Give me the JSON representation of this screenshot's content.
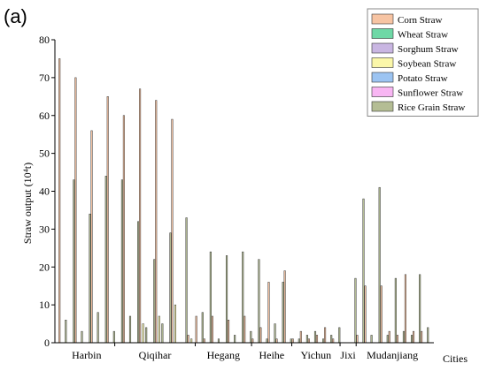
{
  "panel_label": "(a)",
  "colors": {
    "corn": "#f7c4a3",
    "wheat": "#6fd8a6",
    "sorghum": "#c9b6e2",
    "soybean": "#fbf7a9",
    "potato": "#9cc4f2",
    "sunflower": "#f8b6f3",
    "rice": "#b4bd94"
  },
  "chart_data": {
    "type": "bar",
    "title": "",
    "xlabel": "Cities",
    "ylabel": "Straw output (10⁴t)",
    "ylim": [
      0,
      80
    ],
    "yticks": [
      0,
      10,
      20,
      30,
      40,
      50,
      60,
      70,
      80
    ],
    "grid": false,
    "legend_position": "top-right",
    "series": [
      {
        "name": "Corn Straw",
        "color_key": "corn"
      },
      {
        "name": "Wheat Straw",
        "color_key": "wheat"
      },
      {
        "name": "Sorghum Straw",
        "color_key": "sorghum"
      },
      {
        "name": "Soybean Straw",
        "color_key": "soybean"
      },
      {
        "name": "Potato Straw",
        "color_key": "potato"
      },
      {
        "name": "Sunflower Straw",
        "color_key": "sunflower"
      },
      {
        "name": "Rice Grain Straw",
        "color_key": "rice"
      }
    ],
    "cities": [
      {
        "name": "Harbin",
        "counties": [
          {
            "values": [
              75,
              0,
              0,
              0,
              0,
              0,
              6
            ]
          },
          {
            "values": [
              0,
              0,
              0,
              0,
              0,
              0,
              43
            ]
          },
          {
            "values": [
              70,
              0,
              0,
              0,
              0,
              0,
              3
            ]
          },
          {
            "values": [
              0,
              0,
              0,
              0,
              0,
              0,
              34
            ]
          },
          {
            "values": [
              56,
              0,
              0,
              0,
              0,
              0,
              8
            ]
          },
          {
            "values": [
              0,
              0,
              0,
              0,
              0,
              0,
              44
            ]
          },
          {
            "values": [
              65,
              0,
              0,
              0,
              0,
              0,
              3
            ]
          }
        ]
      },
      {
        "name": "Qiqihar",
        "counties": [
          {
            "values": [
              0,
              0,
              0,
              0,
              0,
              0,
              43
            ]
          },
          {
            "values": [
              60,
              0,
              0,
              0,
              0,
              0,
              7
            ]
          },
          {
            "values": [
              0,
              0,
              0,
              0,
              0,
              0,
              32
            ]
          },
          {
            "values": [
              67,
              0,
              0,
              5,
              0,
              0,
              4
            ]
          },
          {
            "values": [
              0,
              0,
              0,
              0,
              0,
              0,
              22
            ]
          },
          {
            "values": [
              64,
              0,
              0,
              7,
              0,
              0,
              5
            ]
          },
          {
            "values": [
              0,
              0,
              0,
              0,
              0,
              0,
              29
            ]
          },
          {
            "values": [
              59,
              0,
              0,
              10,
              0,
              0,
              0
            ]
          },
          {
            "values": [
              0,
              0,
              0,
              0,
              0,
              0,
              33
            ]
          },
          {
            "values": [
              2,
              0,
              0,
              1,
              0,
              0,
              0
            ]
          }
        ]
      },
      {
        "name": "Hegang",
        "counties": [
          {
            "values": [
              7,
              0,
              0,
              0,
              0,
              0,
              8
            ]
          },
          {
            "values": [
              1,
              0,
              0,
              0,
              0,
              0,
              24
            ]
          },
          {
            "values": [
              7,
              0,
              0,
              0,
              0,
              0,
              1
            ]
          },
          {
            "values": [
              0,
              0,
              0,
              0,
              0,
              0,
              23
            ]
          },
          {
            "values": [
              6,
              0,
              0,
              0,
              0,
              0,
              2
            ]
          },
          {
            "values": [
              0,
              0,
              0,
              0,
              0,
              0,
              24
            ]
          },
          {
            "values": [
              7,
              0,
              0,
              0,
              0,
              0,
              3
            ]
          }
        ]
      },
      {
        "name": "Heihe",
        "counties": [
          {
            "values": [
              1,
              0,
              0,
              0,
              0,
              0,
              22
            ]
          },
          {
            "values": [
              4,
              0,
              0,
              0,
              0,
              0,
              1
            ]
          },
          {
            "values": [
              16,
              0,
              0,
              0,
              0,
              0,
              5
            ]
          },
          {
            "values": [
              1,
              0,
              0,
              0,
              0,
              0,
              16
            ]
          },
          {
            "values": [
              19,
              0,
              0,
              0,
              0,
              0,
              1
            ]
          }
        ]
      },
      {
        "name": "Yichun",
        "counties": [
          {
            "values": [
              1,
              0,
              0,
              0,
              0,
              0,
              1
            ]
          },
          {
            "values": [
              3,
              0,
              0,
              0,
              0,
              0,
              2
            ]
          },
          {
            "values": [
              1,
              0,
              0,
              0,
              0,
              0,
              3
            ]
          },
          {
            "values": [
              2,
              0,
              0,
              0,
              0,
              0,
              1
            ]
          },
          {
            "values": [
              4,
              0,
              0,
              0,
              0,
              0,
              2
            ]
          },
          {
            "values": [
              1,
              0,
              0,
              0,
              0,
              0,
              4
            ]
          }
        ]
      },
      {
        "name": "Jixi",
        "counties": [
          {
            "values": [
              0,
              0,
              0,
              0,
              0,
              0,
              0
            ]
          },
          {
            "values": [
              0,
              0,
              0,
              0,
              0,
              0,
              17
            ]
          }
        ]
      },
      {
        "name": "Mudanjiang",
        "counties": [
          {
            "values": [
              2,
              0,
              0,
              0,
              0,
              0,
              38
            ]
          },
          {
            "values": [
              15,
              0,
              0,
              0,
              0,
              0,
              2
            ]
          },
          {
            "values": [
              0,
              0,
              0,
              0,
              0,
              0,
              41
            ]
          },
          {
            "values": [
              15,
              0,
              0,
              0,
              0,
              0,
              2
            ]
          },
          {
            "values": [
              3,
              0,
              0,
              0,
              0,
              0,
              17
            ]
          },
          {
            "values": [
              2,
              0,
              0,
              0,
              0,
              0,
              3
            ]
          },
          {
            "values": [
              18,
              0,
              0,
              0,
              0,
              0,
              2
            ]
          },
          {
            "values": [
              3,
              0,
              0,
              0,
              0,
              0,
              18
            ]
          },
          {
            "values": [
              3,
              0,
              0,
              0,
              0,
              0,
              4
            ]
          }
        ]
      }
    ]
  }
}
